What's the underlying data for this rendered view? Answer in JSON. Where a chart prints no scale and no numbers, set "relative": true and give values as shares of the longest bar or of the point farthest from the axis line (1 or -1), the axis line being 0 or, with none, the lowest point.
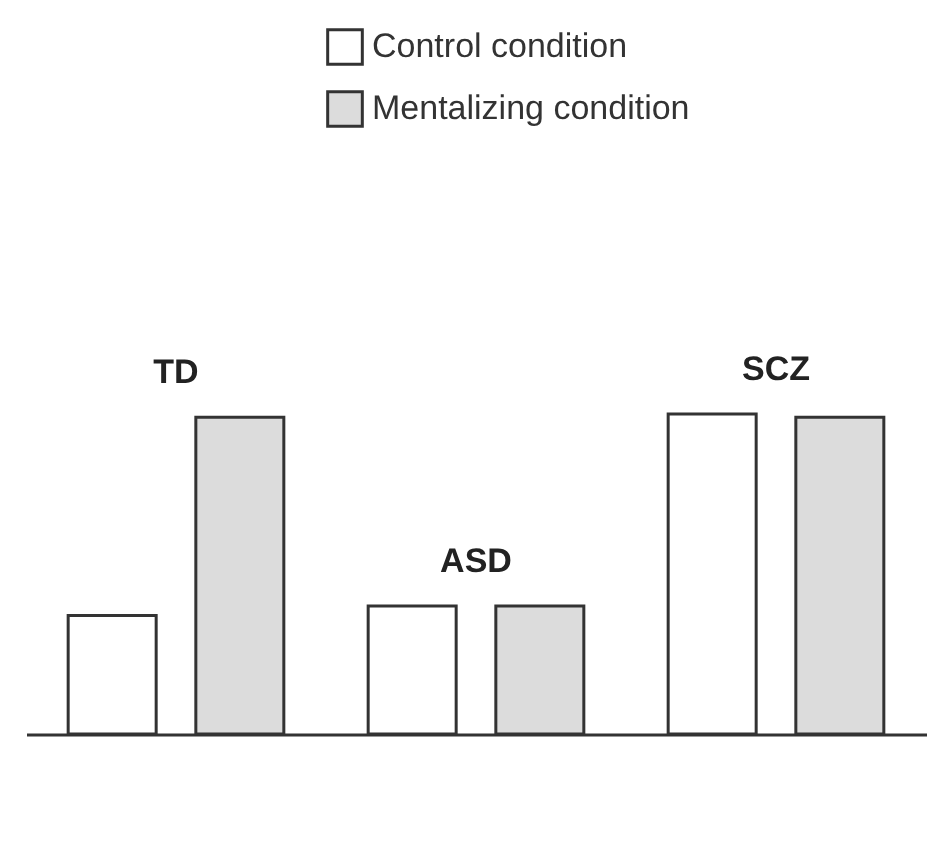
{
  "chart_data": {
    "type": "bar",
    "categories": [
      "TD",
      "ASD",
      "SCZ"
    ],
    "relative": true,
    "legend": "top right",
    "series": [
      {
        "name": "Control condition",
        "color": "#ffffff",
        "values": [
          0.37,
          0.4,
          1
        ]
      },
      {
        "name": "Mentalizing condition",
        "color": "#dcdcdc",
        "values": [
          0.99,
          0.4,
          0.99
        ]
      }
    ]
  }
}
